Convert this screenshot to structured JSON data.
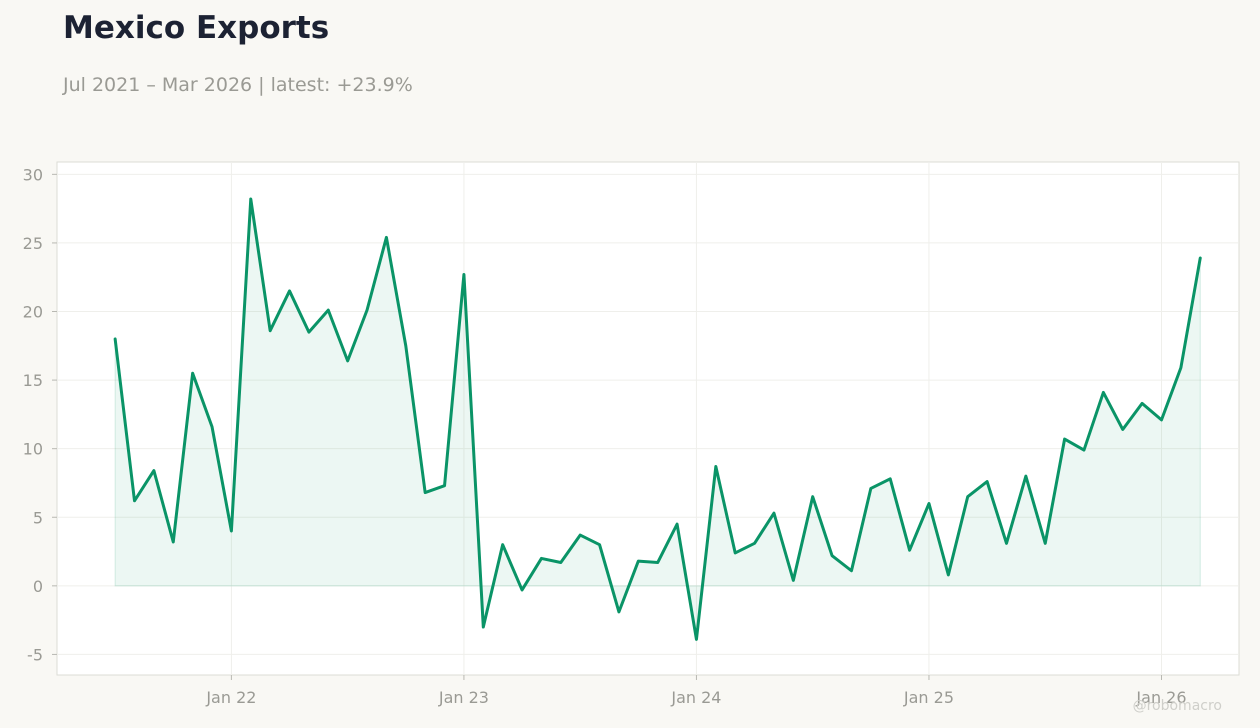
{
  "header": {
    "title": "Mexico Exports",
    "subtitle": "Jul 2021 – Mar 2026 | latest: +23.9%"
  },
  "watermark": "@robomacro",
  "colors": {
    "line": "#0a9467",
    "fill": "#0a9467",
    "background": "#f9f8f4",
    "plot_background": "#ffffff",
    "grid": "#efefeb",
    "frame": "#dcdcd6"
  },
  "chart_data": {
    "type": "area",
    "title": "Mexico Exports",
    "subtitle": "Jul 2021 – Mar 2026 | latest: +23.9%",
    "xlabel": "",
    "ylabel": "",
    "grid": true,
    "legend": "none",
    "x_range": [
      "2021-04",
      "2026-05"
    ],
    "ylim": [
      -6.5,
      30.9
    ],
    "y_ticks": [
      -5,
      0,
      5,
      10,
      15,
      20,
      25,
      30
    ],
    "x_ticks": [
      {
        "date": "2022-01",
        "label": "Jan 22"
      },
      {
        "date": "2023-01",
        "label": "Jan 23"
      },
      {
        "date": "2024-01",
        "label": "Jan 24"
      },
      {
        "date": "2025-01",
        "label": "Jan 25"
      },
      {
        "date": "2026-01",
        "label": "Jan 26"
      }
    ],
    "x": [
      "2021-07",
      "2021-08",
      "2021-09",
      "2021-10",
      "2021-11",
      "2021-12",
      "2022-01",
      "2022-02",
      "2022-03",
      "2022-04",
      "2022-05",
      "2022-06",
      "2022-07",
      "2022-08",
      "2022-09",
      "2022-10",
      "2022-11",
      "2022-12",
      "2023-01",
      "2023-02",
      "2023-03",
      "2023-04",
      "2023-05",
      "2023-06",
      "2023-07",
      "2023-08",
      "2023-09",
      "2023-10",
      "2023-11",
      "2023-12",
      "2024-01",
      "2024-02",
      "2024-03",
      "2024-04",
      "2024-05",
      "2024-06",
      "2024-07",
      "2024-08",
      "2024-09",
      "2024-10",
      "2024-11",
      "2024-12",
      "2025-01",
      "2025-02",
      "2025-03",
      "2025-04",
      "2025-05",
      "2025-06",
      "2025-07",
      "2025-08",
      "2025-09",
      "2025-10",
      "2025-11",
      "2025-12",
      "2026-01",
      "2026-02",
      "2026-03"
    ],
    "series": [
      {
        "values": [
          18.0,
          6.2,
          8.4,
          3.2,
          15.5,
          11.6,
          4.0,
          28.2,
          18.6,
          21.5,
          18.5,
          20.1,
          16.4,
          20.1,
          25.4,
          17.5,
          6.8,
          7.3,
          22.7,
          -3.0,
          3.0,
          -0.3,
          2.0,
          1.7,
          3.7,
          3.0,
          -1.9,
          1.8,
          1.7,
          4.5,
          -3.9,
          8.7,
          2.4,
          3.1,
          5.3,
          0.4,
          6.5,
          2.2,
          1.1,
          7.1,
          7.8,
          2.6,
          6.0,
          0.8,
          6.5,
          7.6,
          3.1,
          8.0,
          3.1,
          10.7,
          9.9,
          14.1,
          11.4,
          13.3,
          12.1,
          15.9,
          23.9
        ]
      }
    ]
  }
}
